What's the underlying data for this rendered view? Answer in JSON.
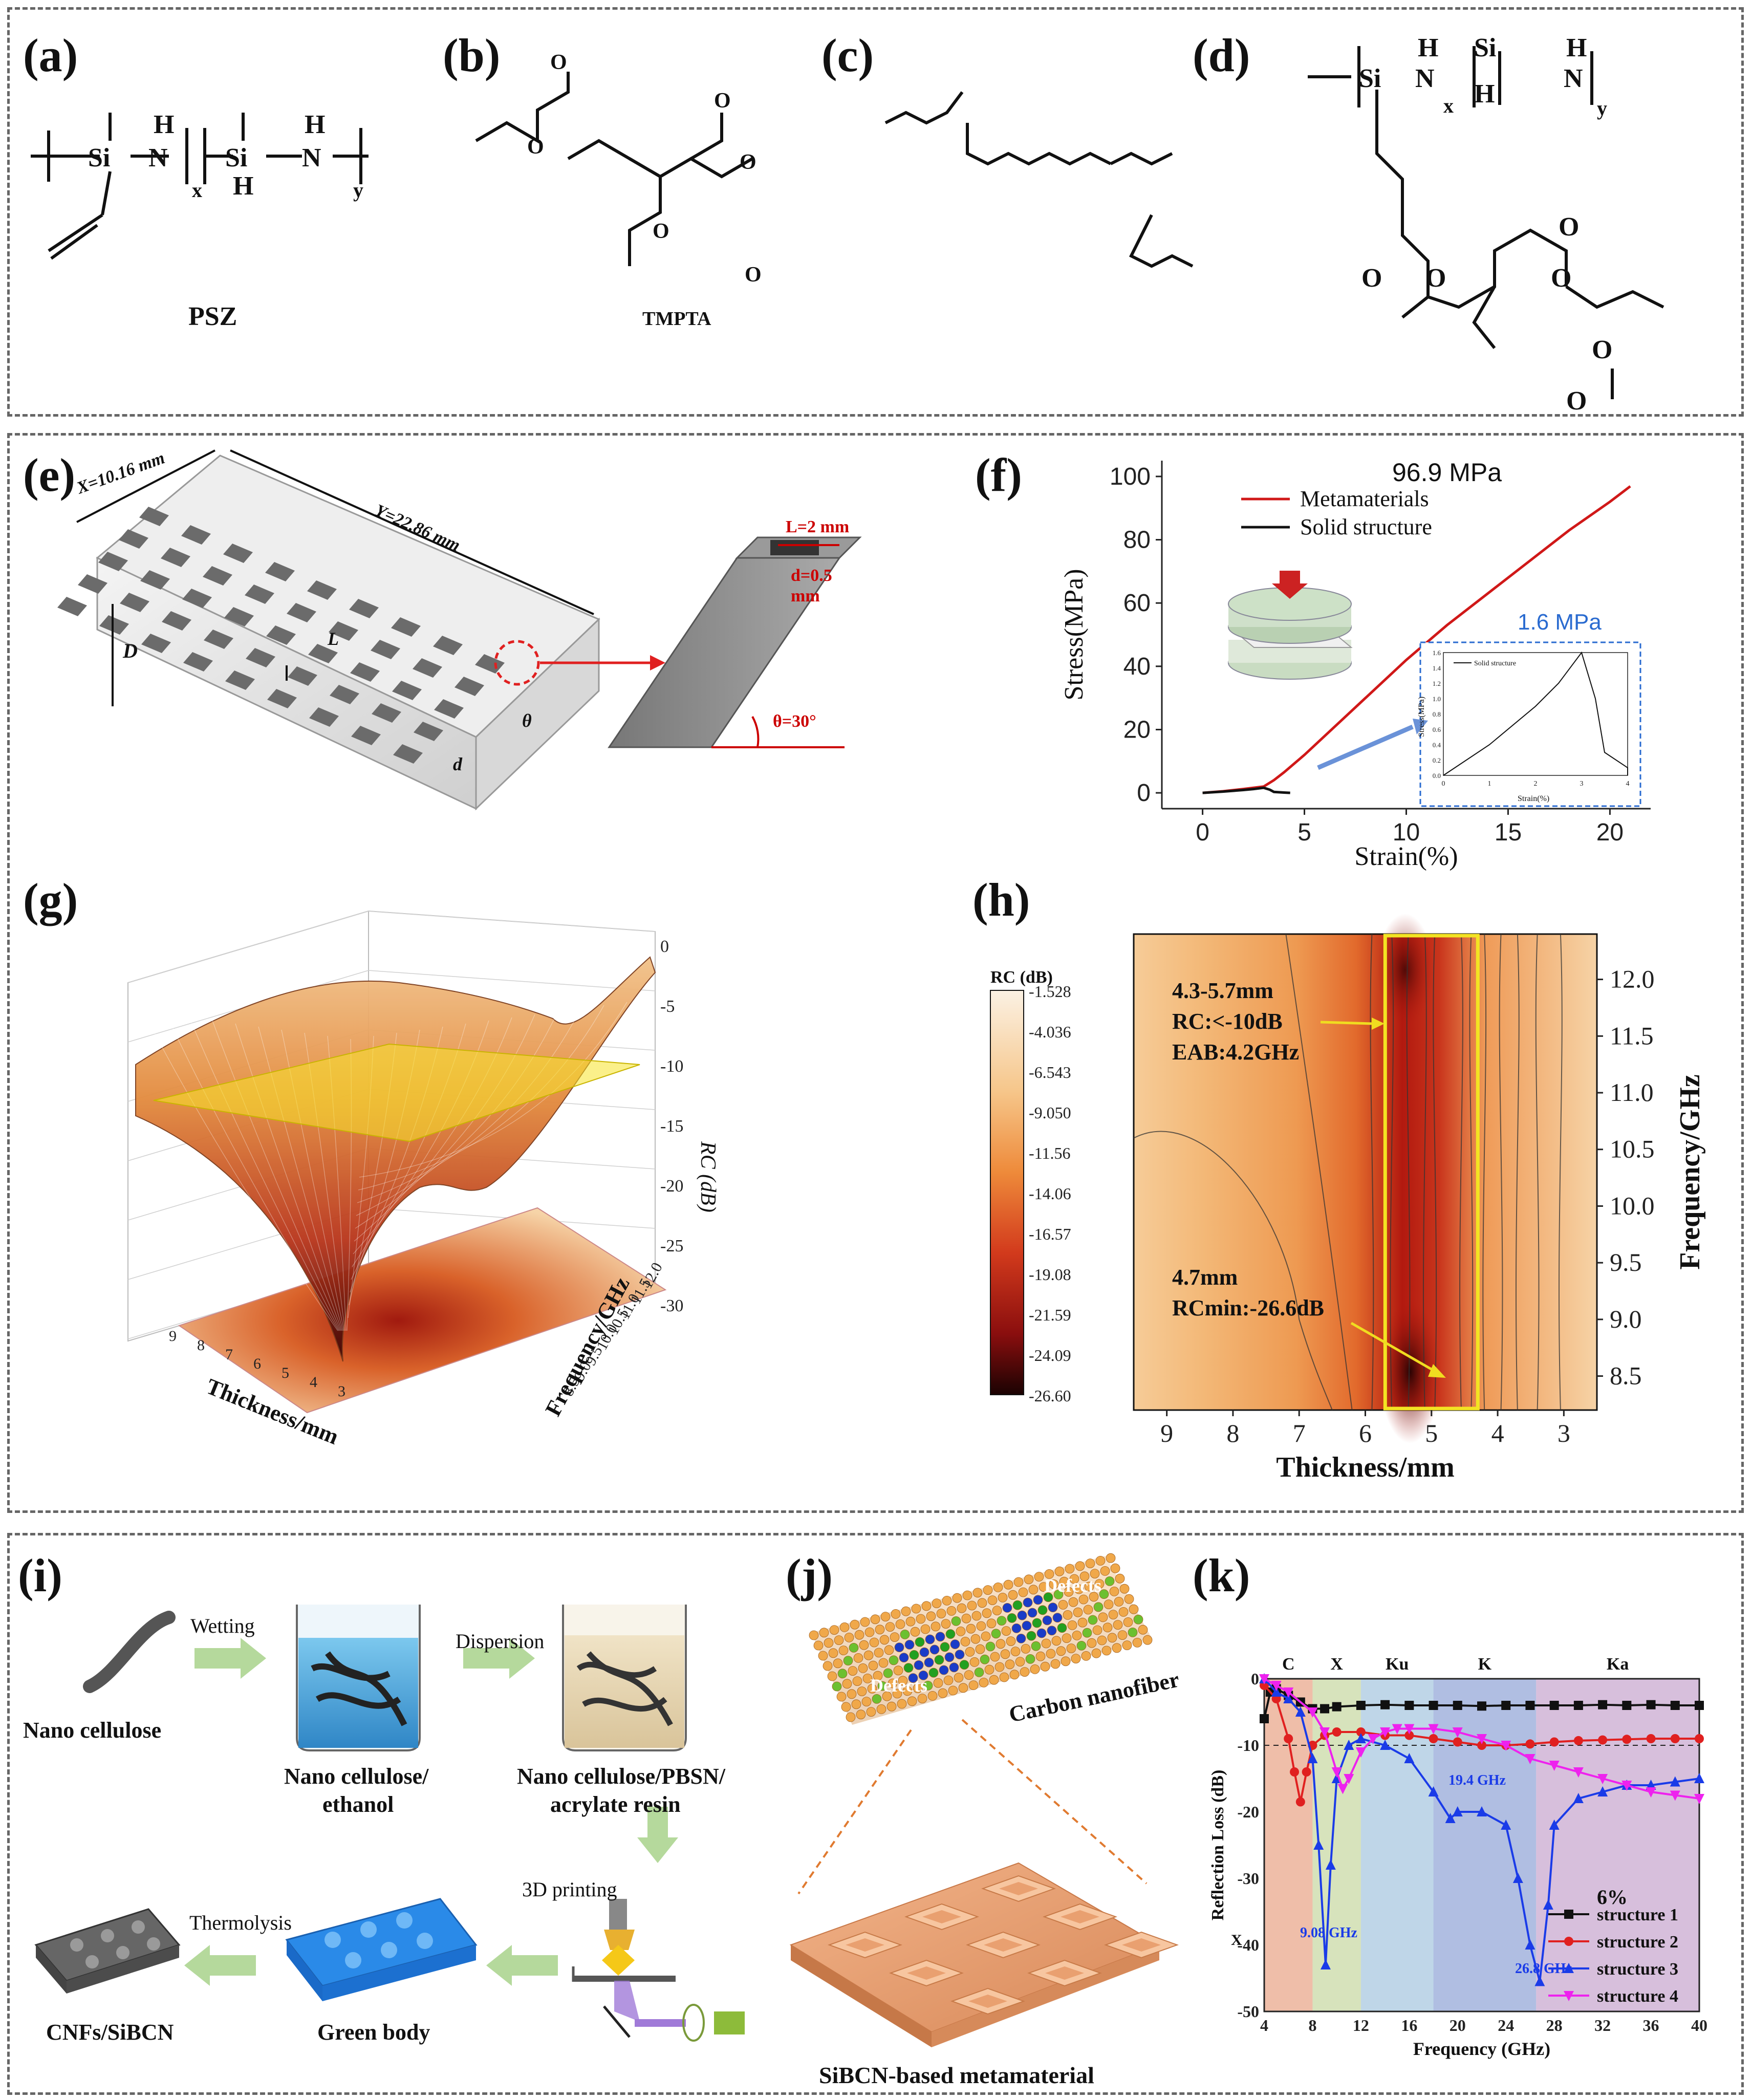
{
  "panels": {
    "a": {
      "label": "(a)",
      "caption": "PSZ",
      "atoms": [
        "Si",
        "H",
        "N",
        "x",
        "Si",
        "H",
        "H",
        "N",
        "y"
      ]
    },
    "b": {
      "label": "(b)",
      "caption": "TMPTA"
    },
    "c": {
      "label": "(c)"
    },
    "d": {
      "label": "(d)",
      "atoms": [
        "Si",
        "H",
        "N",
        "x",
        "Si",
        "H",
        "H",
        "N",
        "y",
        "O",
        "O",
        "O",
        "O",
        "O",
        "O"
      ]
    },
    "e": {
      "label": "(e)",
      "dims": {
        "x": "X=10.16 mm",
        "y": "Y=22.86 mm",
        "D": "D",
        "L": "L",
        "d": "d",
        "theta": "θ",
        "L2": "L=2 mm",
        "d05": "d=0.5",
        "mm": "mm",
        "angle": "θ=30°"
      }
    },
    "f": {
      "label": "(f)",
      "peak": "96.9 MPa",
      "inset_peak": "1.6 MPa",
      "inset_legend": "Solid structure",
      "inset_xlabel": "Strain(%)",
      "inset_ylabel": "Stress(MPa)",
      "inset_xticks": [
        "0",
        "1",
        "2",
        "3",
        "4"
      ],
      "inset_yticks": [
        "0.0",
        "0.2",
        "0.4",
        "0.6",
        "0.8",
        "1.0",
        "1.2",
        "1.4",
        "1.6"
      ]
    },
    "g": {
      "label": "(g)",
      "zlabel": "RC (dB)",
      "xlabel": "Thickness/mm",
      "ylabel": "Frequency/GHz",
      "zticks": [
        "0",
        "-5",
        "-10",
        "-15",
        "-20",
        "-25",
        "-30"
      ],
      "xticks": [
        "9",
        "8",
        "7",
        "6",
        "5",
        "4",
        "3"
      ],
      "yticks": [
        "12.0",
        "11.5",
        "11.0",
        "10.5",
        "10.0",
        "9.5",
        "9.0",
        "8.5"
      ]
    },
    "h": {
      "label": "(h)",
      "cb_title": "RC (dB)",
      "cb_ticks": [
        "-1.528",
        "-4.036",
        "-6.543",
        "-9.050",
        "-11.56",
        "-14.06",
        "-16.57",
        "-19.08",
        "-21.59",
        "-24.09",
        "-26.60"
      ],
      "ann1": [
        "4.3-5.7mm",
        "RC:<-10dB",
        "EAB:4.2GHz"
      ],
      "ann2": [
        "4.7mm",
        "RCmin:-26.6dB"
      ]
    },
    "i": {
      "label": "(i)",
      "steps": [
        "Wetting",
        "Dispersion",
        "3D printing",
        "Thermolysis"
      ],
      "items": [
        "Nano cellulose",
        "Nano cellulose/",
        "ethanol",
        "Nano cellulose/PBSN/",
        "acrylate resin",
        "CNFs/SiBCN",
        "Green body"
      ]
    },
    "j": {
      "label": "(j)",
      "defects": [
        "Defects",
        "Defects"
      ],
      "fiber": "Carbon nanofiber",
      "caption": "SiBCN-based metamaterial"
    },
    "k": {
      "label": "(k)",
      "bands": [
        "C",
        "X",
        "Ku",
        "K",
        "Ka"
      ],
      "legend_title": "6%",
      "annotations": [
        "9.08 GHz",
        "19.4 GHz",
        "26.8 GHz"
      ],
      "x_marker": "X"
    }
  },
  "chart_data": [
    {
      "id": "f",
      "type": "line",
      "xlabel": "Strain(%)",
      "ylabel": "Stress(MPa)",
      "xlim": [
        -2,
        22
      ],
      "ylim": [
        -5,
        105
      ],
      "xticks": [
        0,
        5,
        10,
        15,
        20
      ],
      "yticks": [
        0,
        20,
        40,
        60,
        80,
        100
      ],
      "legend": "top-left",
      "series": [
        {
          "name": "Metamaterials",
          "color": "#d01818",
          "x": [
            0,
            1,
            2,
            3,
            3.5,
            4,
            5,
            6,
            8,
            10,
            12,
            14,
            16,
            18,
            20,
            21
          ],
          "y": [
            0,
            0.5,
            1.2,
            2,
            4,
            6.5,
            12,
            18,
            30,
            42,
            53,
            63,
            73,
            83,
            92,
            96.9
          ]
        },
        {
          "name": "Solid structure",
          "color": "#111111",
          "x": [
            0,
            1,
            2,
            2.5,
            3,
            3.3,
            3.5,
            4,
            4.3
          ],
          "y": [
            0,
            0.4,
            0.9,
            1.2,
            1.6,
            1.0,
            0.3,
            0.1,
            0.0
          ]
        }
      ]
    },
    {
      "id": "h",
      "type": "heatmap",
      "xlabel": "Thickness/mm",
      "ylabel": "Frequency/GHz",
      "xlim": [
        9.5,
        2.5
      ],
      "ylim": [
        8.2,
        12.4
      ],
      "xticks": [
        9,
        8,
        7,
        6,
        5,
        4,
        3
      ],
      "yticks": [
        8.5,
        9.0,
        9.5,
        10.0,
        10.5,
        11.0,
        11.5,
        12.0
      ],
      "zlim": [
        -26.6,
        -1.528
      ],
      "highlight_band_mm": [
        5.7,
        4.3
      ]
    },
    {
      "id": "k",
      "type": "line",
      "xlabel": "Frequency (GHz)",
      "ylabel": "Reflection Loss (dB)",
      "xlim": [
        4,
        40
      ],
      "ylim": [
        -50,
        0
      ],
      "xticks": [
        4,
        8,
        12,
        16,
        20,
        24,
        28,
        32,
        36,
        40
      ],
      "yticks": [
        0,
        -10,
        -20,
        -30,
        -40,
        -50
      ],
      "bands": [
        {
          "name": "C",
          "from": 4,
          "to": 8
        },
        {
          "name": "X",
          "from": 8,
          "to": 12
        },
        {
          "name": "Ku",
          "from": 12,
          "to": 18
        },
        {
          "name": "K",
          "from": 18,
          "to": 26.5
        },
        {
          "name": "Ka",
          "from": 26.5,
          "to": 40
        }
      ],
      "legend": "bottom-right",
      "series": [
        {
          "name": "structure 1",
          "color": "#111111",
          "marker": "square",
          "x": [
            4,
            4.5,
            5,
            6,
            7,
            8,
            9,
            10,
            12,
            14,
            16,
            18,
            20,
            22,
            24,
            26,
            28,
            30,
            32,
            34,
            36,
            38,
            40
          ],
          "y": [
            -6,
            -2,
            -1.5,
            -2.5,
            -3.5,
            -4.5,
            -4.5,
            -4.2,
            -4,
            -3.9,
            -4,
            -4,
            -4,
            -4.1,
            -4,
            -4,
            -4,
            -4,
            -3.9,
            -4,
            -3.9,
            -4,
            -4
          ]
        },
        {
          "name": "structure 2",
          "color": "#e02020",
          "marker": "circle",
          "x": [
            4,
            5,
            6,
            6.5,
            7,
            7.5,
            8,
            9,
            10,
            12,
            14,
            16,
            18,
            20,
            22,
            24,
            26,
            28,
            30,
            32,
            34,
            36,
            38,
            40
          ],
          "y": [
            -1,
            -3,
            -9,
            -14,
            -18.5,
            -14,
            -10,
            -8.5,
            -8,
            -8,
            -8.5,
            -8.5,
            -9,
            -9.5,
            -10,
            -10,
            -9.8,
            -9.5,
            -9.3,
            -9.2,
            -9.1,
            -9,
            -9,
            -9
          ]
        },
        {
          "name": "structure 3",
          "color": "#1a3be8",
          "marker": "triangle",
          "x": [
            4,
            5,
            6,
            7,
            8,
            8.5,
            9.08,
            9.5,
            10,
            11,
            12,
            14,
            16,
            18,
            19.4,
            20,
            22,
            24,
            25,
            26,
            26.8,
            27.5,
            28,
            30,
            32,
            34,
            36,
            38,
            40
          ],
          "y": [
            0,
            -2,
            -3,
            -5,
            -12,
            -25,
            -43,
            -28,
            -15,
            -10,
            -9,
            -10,
            -12,
            -17,
            -21,
            -20,
            -20,
            -22,
            -30,
            -40,
            -45.5,
            -34,
            -22,
            -18,
            -17,
            -16,
            -16,
            -15.5,
            -15
          ]
        },
        {
          "name": "structure 4",
          "color": "#ee22ee",
          "marker": "triangle-down",
          "x": [
            4,
            5,
            6,
            8,
            9,
            10,
            10.5,
            11,
            12,
            13,
            14,
            15,
            16,
            18,
            20,
            22,
            24,
            26,
            28,
            30,
            32,
            34,
            36,
            38,
            40
          ],
          "y": [
            0,
            -1,
            -2,
            -5,
            -8,
            -14,
            -16.5,
            -15,
            -11,
            -9,
            -8,
            -7.5,
            -7.5,
            -7.5,
            -8,
            -9,
            -10,
            -12,
            -13,
            -14,
            -15,
            -16,
            -17,
            -17.5,
            -18
          ]
        }
      ]
    }
  ]
}
